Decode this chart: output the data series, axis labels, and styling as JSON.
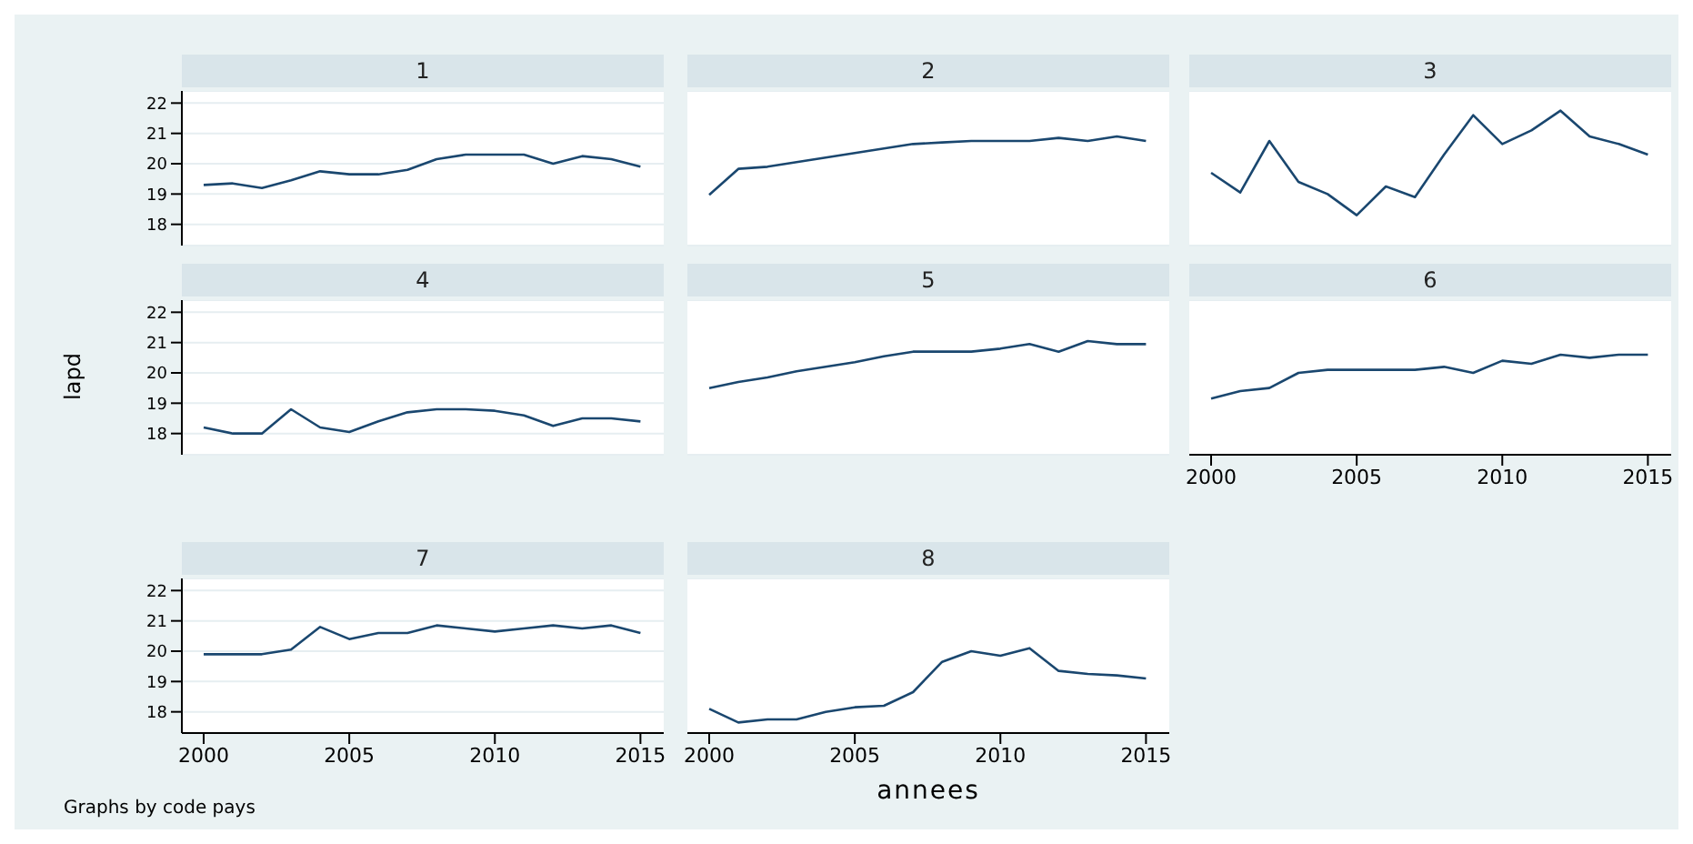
{
  "chart_data": [
    {
      "type": "line",
      "title": "1",
      "x": [
        2000,
        2001,
        2002,
        2003,
        2004,
        2005,
        2006,
        2007,
        2008,
        2009,
        2010,
        2011,
        2012,
        2013,
        2014,
        2015
      ],
      "series": [
        {
          "color": "#1a476f",
          "values": [
            19.3,
            19.35,
            19.2,
            19.45,
            19.75,
            19.65,
            19.65,
            19.8,
            20.15,
            20.3,
            20.3,
            20.3,
            20.0,
            20.25,
            20.15,
            19.9
          ]
        }
      ],
      "xlim": [
        1999.25,
        2015.8
      ],
      "xticks": [
        2000,
        2005,
        2010,
        2015
      ],
      "ylim": [
        17.3,
        22.4
      ],
      "yticks": [
        18,
        19,
        20,
        21,
        22
      ],
      "grid": "y",
      "tick_labels": "y"
    },
    {
      "type": "line",
      "title": "2",
      "x": [
        2000,
        2001,
        2002,
        2003,
        2004,
        2005,
        2006,
        2007,
        2008,
        2009,
        2010,
        2011,
        2012,
        2013,
        2014,
        2015
      ],
      "series": [
        {
          "color": "#1a476f",
          "values": [
            18.97,
            19.83,
            19.9,
            20.05,
            20.2,
            20.35,
            20.5,
            20.65,
            20.7,
            20.75,
            20.75,
            20.75,
            20.85,
            20.75,
            20.9,
            20.75
          ]
        }
      ],
      "xlim": [
        1999.25,
        2015.8
      ],
      "xticks": [
        2000,
        2005,
        2010,
        2015
      ],
      "ylim": [
        17.3,
        22.4
      ],
      "yticks": [
        18,
        19,
        20,
        21,
        22
      ],
      "grid": "y",
      "tick_labels": false
    },
    {
      "type": "line",
      "title": "3",
      "x": [
        2000,
        2001,
        2002,
        2003,
        2004,
        2005,
        2006,
        2007,
        2008,
        2009,
        2010,
        2011,
        2012,
        2013,
        2014,
        2015
      ],
      "series": [
        {
          "color": "#1a476f",
          "values": [
            19.7,
            19.05,
            20.75,
            19.4,
            19.0,
            18.3,
            19.25,
            18.9,
            20.3,
            21.6,
            20.65,
            21.1,
            21.75,
            20.9,
            20.65,
            20.3
          ]
        }
      ],
      "xlim": [
        1999.25,
        2015.8
      ],
      "xticks": [
        2000,
        2005,
        2010,
        2015
      ],
      "ylim": [
        17.3,
        22.4
      ],
      "yticks": [
        18,
        19,
        20,
        21,
        22
      ],
      "grid": "y",
      "tick_labels": false
    },
    {
      "type": "line",
      "title": "4",
      "ylabel": "lapd",
      "x": [
        2000,
        2001,
        2002,
        2003,
        2004,
        2005,
        2006,
        2007,
        2008,
        2009,
        2010,
        2011,
        2012,
        2013,
        2014,
        2015
      ],
      "series": [
        {
          "color": "#1a476f",
          "values": [
            18.2,
            18.0,
            18.0,
            18.8,
            18.2,
            18.05,
            18.4,
            18.7,
            18.8,
            18.8,
            18.75,
            18.6,
            18.25,
            18.5,
            18.5,
            18.4
          ]
        }
      ],
      "xlim": [
        1999.25,
        2015.8
      ],
      "xticks": [
        2000,
        2005,
        2010,
        2015
      ],
      "ylim": [
        17.3,
        22.4
      ],
      "yticks": [
        18,
        19,
        20,
        21,
        22
      ],
      "grid": "y",
      "tick_labels": "y"
    },
    {
      "type": "line",
      "title": "5",
      "x": [
        2000,
        2001,
        2002,
        2003,
        2004,
        2005,
        2006,
        2007,
        2008,
        2009,
        2010,
        2011,
        2012,
        2013,
        2014,
        2015
      ],
      "series": [
        {
          "color": "#1a476f",
          "values": [
            19.5,
            19.7,
            19.85,
            20.05,
            20.2,
            20.35,
            20.55,
            20.7,
            20.7,
            20.7,
            20.8,
            20.95,
            20.7,
            21.05,
            20.95,
            20.95
          ]
        }
      ],
      "xlim": [
        1999.25,
        2015.8
      ],
      "xticks": [
        2000,
        2005,
        2010,
        2015
      ],
      "ylim": [
        17.3,
        22.4
      ],
      "yticks": [
        18,
        19,
        20,
        21,
        22
      ],
      "grid": "y",
      "tick_labels": false
    },
    {
      "type": "line",
      "title": "6",
      "x": [
        2000,
        2001,
        2002,
        2003,
        2004,
        2005,
        2006,
        2007,
        2008,
        2009,
        2010,
        2011,
        2012,
        2013,
        2014,
        2015
      ],
      "series": [
        {
          "color": "#1a476f",
          "values": [
            19.15,
            19.4,
            19.5,
            20.0,
            20.1,
            20.1,
            20.1,
            20.1,
            20.2,
            20.0,
            20.4,
            20.3,
            20.6,
            20.5,
            20.6,
            20.6
          ]
        }
      ],
      "xlim": [
        1999.25,
        2015.8
      ],
      "xticks": [
        2000,
        2005,
        2010,
        2015
      ],
      "ylim": [
        17.3,
        22.4
      ],
      "yticks": [
        18,
        19,
        20,
        21,
        22
      ],
      "grid": "y",
      "tick_labels": "x"
    },
    {
      "type": "line",
      "title": "7",
      "annotations": [
        "Graphs by code pays"
      ],
      "x": [
        2000,
        2001,
        2002,
        2003,
        2004,
        2005,
        2006,
        2007,
        2008,
        2009,
        2010,
        2011,
        2012,
        2013,
        2014,
        2015
      ],
      "series": [
        {
          "color": "#1a476f",
          "values": [
            19.9,
            19.9,
            19.9,
            20.05,
            20.8,
            20.4,
            20.6,
            20.6,
            20.85,
            20.75,
            20.65,
            20.75,
            20.85,
            20.75,
            20.85,
            20.6
          ]
        }
      ],
      "xlim": [
        1999.25,
        2015.8
      ],
      "xticks": [
        2000,
        2005,
        2010,
        2015
      ],
      "ylim": [
        17.3,
        22.4
      ],
      "yticks": [
        18,
        19,
        20,
        21,
        22
      ],
      "grid": "y"
    },
    {
      "type": "line",
      "title": "8",
      "xlabel": "annees",
      "x": [
        2000,
        2001,
        2002,
        2003,
        2004,
        2005,
        2006,
        2007,
        2008,
        2009,
        2010,
        2011,
        2012,
        2013,
        2014,
        2015
      ],
      "series": [
        {
          "color": "#1a476f",
          "values": [
            18.1,
            17.65,
            17.75,
            17.75,
            18.0,
            18.15,
            18.2,
            18.65,
            19.65,
            20.0,
            19.85,
            20.1,
            19.35,
            19.25,
            19.2,
            19.1
          ]
        }
      ],
      "xlim": [
        1999.25,
        2015.8
      ],
      "xticks": [
        2000,
        2005,
        2010,
        2015
      ],
      "ylim": [
        17.3,
        22.4
      ],
      "yticks": [
        18,
        19,
        20,
        21,
        22
      ],
      "grid": "y",
      "tick_labels": "x"
    }
  ]
}
